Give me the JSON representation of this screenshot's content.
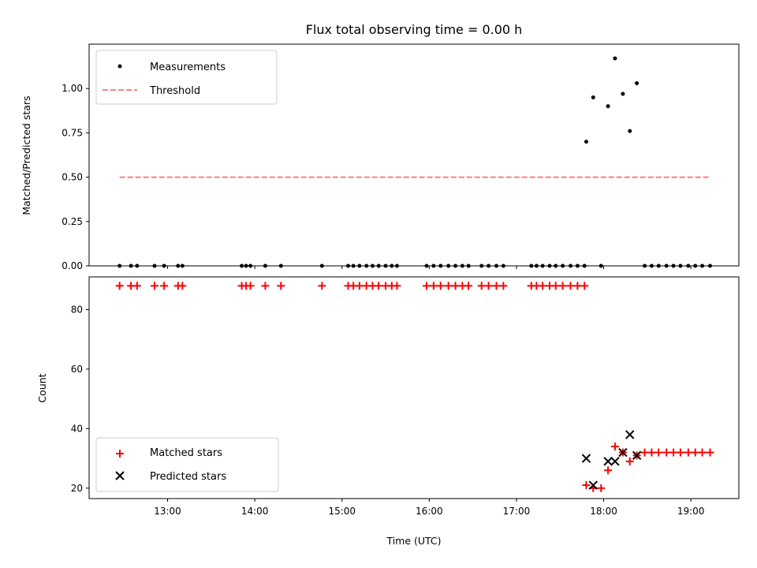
{
  "chart_data": {
    "title": "Flux total observing time = 0.00 h",
    "xlabel": "Time (UTC)",
    "x_unit": "hours UTC",
    "xlim": [
      12.1,
      19.55
    ],
    "xticks": [
      {
        "value": 13,
        "label": "13:00"
      },
      {
        "value": 14,
        "label": "14:00"
      },
      {
        "value": 15,
        "label": "15:00"
      },
      {
        "value": 16,
        "label": "16:00"
      },
      {
        "value": 17,
        "label": "17:00"
      },
      {
        "value": 18,
        "label": "18:00"
      },
      {
        "value": 19,
        "label": "19:00"
      }
    ],
    "panels": [
      {
        "type": "scatter",
        "ylabel": "Matched/Predicted stars",
        "ylim": [
          0,
          1.25
        ],
        "yticks": [
          {
            "value": 0,
            "label": "0.00"
          },
          {
            "value": 0.25,
            "label": "0.25"
          },
          {
            "value": 0.5,
            "label": "0.50"
          },
          {
            "value": 0.75,
            "label": "0.75"
          },
          {
            "value": 1.0,
            "label": "1.00"
          }
        ],
        "legend_position": "upper-left",
        "series": [
          {
            "name": "Measurements",
            "marker": "dot",
            "color": "#000000",
            "x": [
              12.45,
              12.58,
              12.65,
              12.85,
              12.96,
              13.12,
              13.17,
              13.85,
              13.9,
              13.95,
              14.12,
              14.3,
              14.77,
              15.07,
              15.13,
              15.2,
              15.28,
              15.35,
              15.42,
              15.5,
              15.57,
              15.63,
              15.97,
              16.05,
              16.13,
              16.22,
              16.3,
              16.38,
              16.45,
              16.6,
              16.68,
              16.77,
              16.85,
              17.17,
              17.23,
              17.3,
              17.38,
              17.45,
              17.53,
              17.62,
              17.7,
              17.78,
              17.97,
              17.8,
              17.88,
              18.05,
              18.13,
              18.22,
              18.3,
              18.38,
              18.47,
              18.55,
              18.63,
              18.72,
              18.8,
              18.88,
              18.97,
              19.05,
              19.13,
              19.22
            ],
            "y": [
              0,
              0,
              0,
              0,
              0,
              0,
              0,
              0,
              0,
              0,
              0,
              0,
              0,
              0,
              0,
              0,
              0,
              0,
              0,
              0,
              0,
              0,
              0,
              0,
              0,
              0,
              0,
              0,
              0,
              0,
              0,
              0,
              0,
              0,
              0,
              0,
              0,
              0,
              0,
              0,
              0,
              0,
              0,
              0.7,
              0.95,
              0.9,
              1.17,
              0.97,
              0.76,
              1.03,
              0,
              0,
              0,
              0,
              0,
              0,
              0,
              0,
              0,
              0
            ]
          },
          {
            "name": "Threshold",
            "marker": "dashed-line",
            "color": "#ff7f7f",
            "x": [
              12.45,
              19.22
            ],
            "y": [
              0.5,
              0.5
            ]
          }
        ]
      },
      {
        "type": "scatter",
        "ylabel": "Count",
        "ylim": [
          16.5,
          91
        ],
        "yticks": [
          {
            "value": 20,
            "label": "20"
          },
          {
            "value": 40,
            "label": "40"
          },
          {
            "value": 60,
            "label": "60"
          },
          {
            "value": 80,
            "label": "80"
          }
        ],
        "legend_position": "lower-left",
        "series": [
          {
            "name": "Matched stars",
            "marker": "plus",
            "color": "#ff0000",
            "x": [
              12.45,
              12.58,
              12.65,
              12.85,
              12.96,
              13.12,
              13.17,
              13.85,
              13.9,
              13.95,
              14.12,
              14.3,
              14.77,
              15.07,
              15.13,
              15.2,
              15.28,
              15.35,
              15.42,
              15.5,
              15.57,
              15.63,
              15.97,
              16.05,
              16.13,
              16.22,
              16.3,
              16.38,
              16.45,
              16.6,
              16.68,
              16.77,
              16.85,
              17.17,
              17.23,
              17.3,
              17.38,
              17.45,
              17.53,
              17.62,
              17.7,
              17.78,
              17.8,
              17.88,
              17.97,
              18.05,
              18.13,
              18.22,
              18.3,
              18.38,
              18.47,
              18.55,
              18.63,
              18.72,
              18.8,
              18.88,
              18.97,
              19.05,
              19.13,
              19.22
            ],
            "y": [
              88,
              88,
              88,
              88,
              88,
              88,
              88,
              88,
              88,
              88,
              88,
              88,
              88,
              88,
              88,
              88,
              88,
              88,
              88,
              88,
              88,
              88,
              88,
              88,
              88,
              88,
              88,
              88,
              88,
              88,
              88,
              88,
              88,
              88,
              88,
              88,
              88,
              88,
              88,
              88,
              88,
              88,
              21,
              20,
              20,
              26,
              34,
              32,
              29,
              31,
              32,
              32,
              32,
              32,
              32,
              32,
              32,
              32,
              32,
              32
            ]
          },
          {
            "name": "Predicted stars",
            "marker": "x",
            "color": "#000000",
            "x": [
              17.8,
              17.88,
              18.05,
              18.13,
              18.22,
              18.3,
              18.38
            ],
            "y": [
              30,
              21,
              29,
              29,
              32,
              38,
              31
            ]
          }
        ]
      }
    ]
  }
}
